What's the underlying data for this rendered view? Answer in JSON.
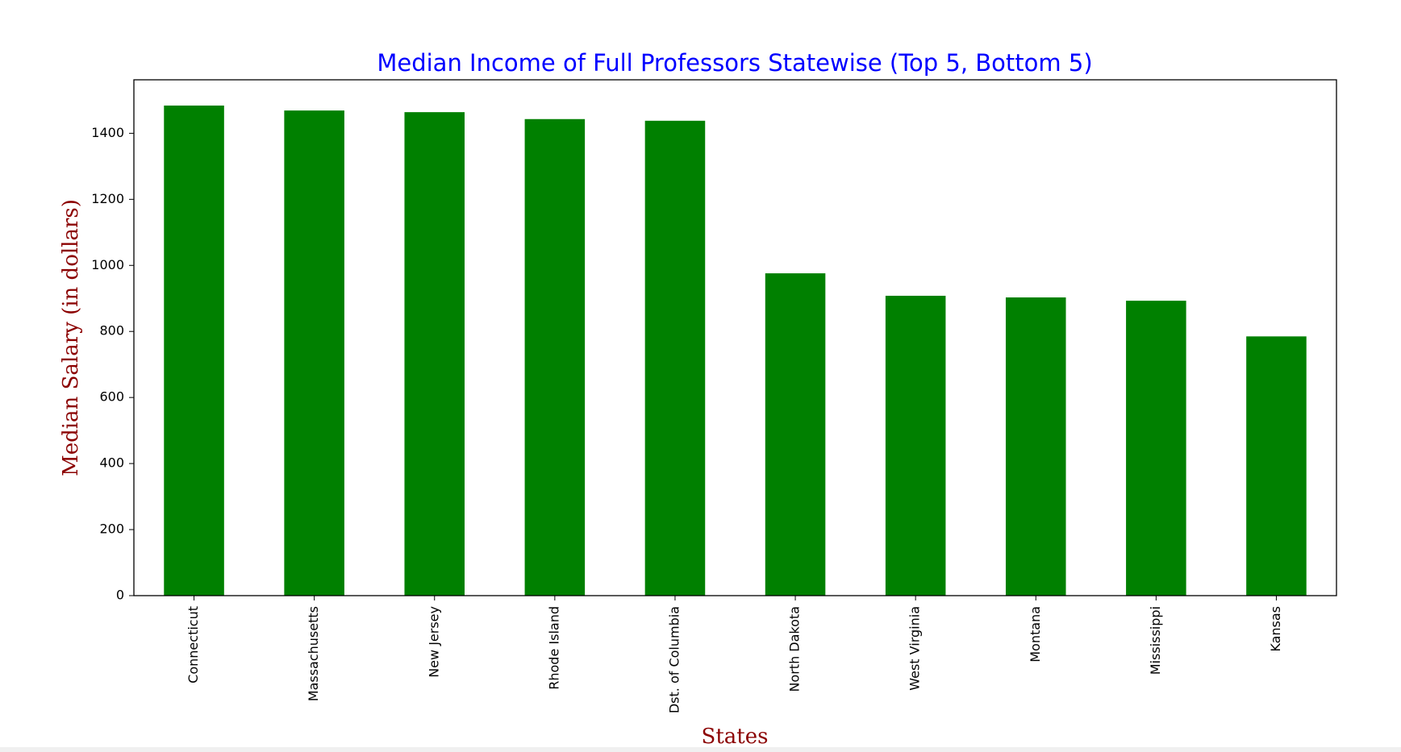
{
  "chart_data": {
    "type": "bar",
    "title": "Median Income of Full Professors Statewise (Top 5, Bottom 5)",
    "xlabel": "States",
    "ylabel": "Median Salary (in dollars)",
    "categories": [
      "Connecticut",
      "Massachusetts",
      "New Jersey",
      "Rhode Island",
      "Dst. of Columbia",
      "North Dakota",
      "West Virginia",
      "Montana",
      "Mississippi",
      "Kansas"
    ],
    "values": [
      1484,
      1469,
      1464,
      1443,
      1438,
      976,
      908,
      903,
      893,
      785
    ],
    "ylim": [
      0,
      1562
    ],
    "yticks": [
      0,
      200,
      400,
      600,
      800,
      1000,
      1200,
      1400
    ],
    "grid": false,
    "colors": {
      "bar": "#008000",
      "title": "#0000ff",
      "axis_label": "#8b0000"
    }
  }
}
